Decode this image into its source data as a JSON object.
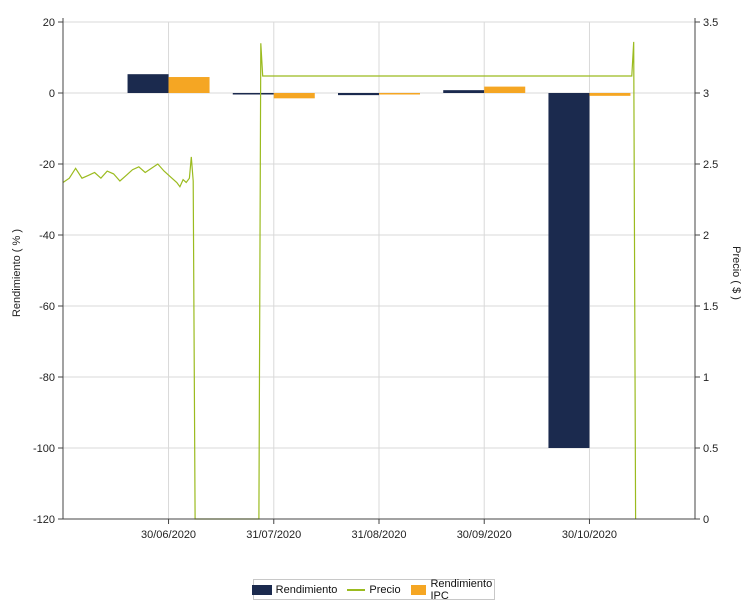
{
  "chart_data": {
    "type": "bar",
    "categories": [
      "30/06/2020",
      "31/07/2020",
      "31/08/2020",
      "30/09/2020",
      "30/10/2020"
    ],
    "series": [
      {
        "name": "Rendimiento",
        "type": "bar",
        "axis": "left",
        "color": "#1b2a4e",
        "values": [
          5.3,
          -0.3,
          -0.6,
          0.8,
          -100
        ]
      },
      {
        "name": "Rendimiento IPC",
        "type": "bar",
        "axis": "left",
        "color": "#f5a623",
        "values": [
          4.5,
          -1.5,
          -0.2,
          1.8,
          -0.8
        ]
      },
      {
        "name": "Precio",
        "type": "line",
        "axis": "right",
        "color": "#9bbb1f",
        "points": [
          [
            0.0,
            2.37
          ],
          [
            0.01,
            2.4
          ],
          [
            0.02,
            2.47
          ],
          [
            0.03,
            2.4
          ],
          [
            0.04,
            2.42
          ],
          [
            0.05,
            2.44
          ],
          [
            0.06,
            2.4
          ],
          [
            0.07,
            2.45
          ],
          [
            0.08,
            2.43
          ],
          [
            0.09,
            2.38
          ],
          [
            0.1,
            2.42
          ],
          [
            0.11,
            2.46
          ],
          [
            0.12,
            2.48
          ],
          [
            0.13,
            2.44
          ],
          [
            0.14,
            2.47
          ],
          [
            0.15,
            2.5
          ],
          [
            0.16,
            2.45
          ],
          [
            0.17,
            2.41
          ],
          [
            0.18,
            2.37
          ],
          [
            0.185,
            2.34
          ],
          [
            0.19,
            2.39
          ],
          [
            0.195,
            2.37
          ],
          [
            0.2,
            2.4
          ],
          [
            0.203,
            2.55
          ],
          [
            0.206,
            2.38
          ],
          [
            0.209,
            0.0
          ],
          [
            0.31,
            0.0
          ],
          [
            0.313,
            3.35
          ],
          [
            0.316,
            3.12
          ],
          [
            0.9,
            3.12
          ],
          [
            0.903,
            3.36
          ],
          [
            0.906,
            0.0
          ]
        ]
      }
    ],
    "y_left": {
      "label": "Rendimiento ( % )",
      "ylim": [
        -120,
        20
      ],
      "ticks": [
        20,
        0,
        -20,
        -40,
        -60,
        -80,
        -100,
        -120
      ]
    },
    "y_right": {
      "label": "Precio ( $ )",
      "ylim": [
        0,
        3.5
      ],
      "ticks": [
        "3.5",
        "3",
        "2.5",
        "2",
        "1.5",
        "1",
        "0.5",
        "0"
      ]
    },
    "grid": true,
    "legend_position": "bottom-center"
  },
  "legend": {
    "items": [
      {
        "name": "Rendimiento",
        "color": "#1b2a4e",
        "kind": "bar"
      },
      {
        "name": "Precio",
        "color": "#9bbb1f",
        "kind": "line"
      },
      {
        "name": "Rendimiento IPC",
        "color": "#f5a623",
        "kind": "bar"
      }
    ]
  }
}
